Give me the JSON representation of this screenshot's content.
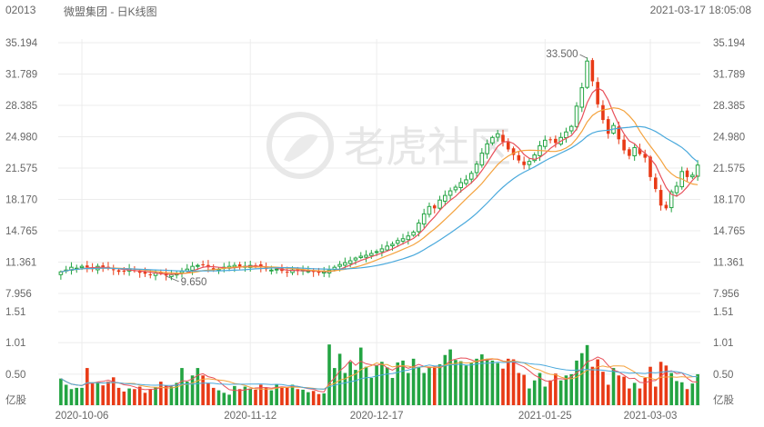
{
  "header": {
    "code": "02013",
    "name": "微盟集团 - 日K线图",
    "datetime": "2021-03-17 18:05:08"
  },
  "watermark": {
    "text": "老虎社区"
  },
  "colors": {
    "up": "#23a442",
    "down": "#e83a16",
    "ma5": "#e8505b",
    "ma10": "#f4a23d",
    "ma20": "#4aa9dc"
  },
  "chart_data": [
    {
      "type": "candlestick",
      "title": "微盟集团 - 日K线图",
      "y_ticks": [
        "35.194",
        "31.789",
        "28.385",
        "24.980",
        "21.575",
        "18.170",
        "14.765",
        "11.361",
        "7.956"
      ],
      "ylim": [
        7.956,
        35.194
      ],
      "x_tick_labels": [
        "2020-10-06",
        "2020-11-12",
        "2020-12-17",
        "2021-01-25",
        "2021-03-03"
      ],
      "annotations": [
        {
          "label": "33.500",
          "type": "high"
        },
        {
          "label": "9.650",
          "type": "low"
        }
      ],
      "series": [
        {
          "label": "MA5"
        },
        {
          "label": "MA10"
        },
        {
          "label": "MA20"
        }
      ],
      "close": [
        10.3,
        10.5,
        10.8,
        10.7,
        10.9,
        10.8,
        10.6,
        10.9,
        10.8,
        10.7,
        10.5,
        10.3,
        10.4,
        10.6,
        10.4,
        10.2,
        10.1,
        10.0,
        10.2,
        10.1,
        9.9,
        10.0,
        10.1,
        10.4,
        10.6,
        10.9,
        11.0,
        11.1,
        10.8,
        10.5,
        10.6,
        10.8,
        10.9,
        11.0,
        10.8,
        10.9,
        11.0,
        11.0,
        10.8,
        10.6,
        10.5,
        10.6,
        10.4,
        10.3,
        10.5,
        10.4,
        10.5,
        10.4,
        10.3,
        10.2,
        10.3,
        10.5,
        10.8,
        11.1,
        11.3,
        11.5,
        11.8,
        12.0,
        12.1,
        12.3,
        12.5,
        12.8,
        13.1,
        13.3,
        13.7,
        13.9,
        14.2,
        14.6,
        15.6,
        16.6,
        17.4,
        17.2,
        18.1,
        18.6,
        19.1,
        19.5,
        20.0,
        20.3,
        21.0,
        22.0,
        23.2,
        24.2,
        24.9,
        25.3,
        24.4,
        23.6,
        23.0,
        22.4,
        21.9,
        22.3,
        23.0,
        24.0,
        24.6,
        24.7,
        24.3,
        24.9,
        25.5,
        26.1,
        28.3,
        30.3,
        33.2,
        31.0,
        28.5,
        26.8,
        25.3,
        26.2,
        24.7,
        23.5,
        22.9,
        23.8,
        23.1,
        22.7,
        20.6,
        19.3,
        17.5,
        17.2,
        19.0,
        19.6,
        21.2,
        20.6,
        20.8,
        21.9
      ],
      "volume": [
        0.43,
        0.33,
        0.26,
        0.28,
        0.28,
        0.6,
        0.35,
        0.37,
        0.32,
        0.38,
        0.45,
        0.28,
        0.22,
        0.27,
        0.26,
        0.3,
        0.2,
        0.25,
        0.29,
        0.38,
        0.32,
        0.3,
        0.36,
        0.6,
        0.38,
        0.48,
        0.6,
        0.48,
        0.36,
        0.28,
        0.24,
        0.2,
        0.17,
        0.31,
        0.26,
        0.3,
        0.27,
        0.25,
        0.33,
        0.28,
        0.24,
        0.34,
        0.3,
        0.29,
        0.33,
        0.26,
        0.25,
        0.21,
        0.23,
        0.18,
        0.19,
        0.98,
        0.6,
        0.83,
        0.52,
        0.7,
        0.57,
        0.93,
        0.62,
        0.44,
        0.64,
        0.7,
        0.61,
        0.44,
        0.69,
        0.72,
        0.52,
        0.75,
        0.62,
        0.52,
        0.6,
        0.62,
        0.66,
        0.81,
        0.9,
        0.73,
        0.71,
        0.64,
        0.68,
        0.75,
        0.82,
        0.75,
        0.72,
        0.68,
        0.59,
        0.75,
        0.74,
        0.52,
        0.49,
        0.27,
        0.4,
        0.52,
        0.3,
        0.4,
        0.51,
        0.4,
        0.48,
        0.5,
        0.72,
        0.84,
        0.97,
        0.62,
        0.74,
        0.54,
        0.33,
        0.6,
        0.48,
        0.46,
        0.27,
        0.36,
        0.27,
        0.44,
        0.62,
        0.3,
        0.7,
        0.64,
        0.52,
        0.39,
        0.37,
        0.26,
        0.35,
        0.5
      ],
      "volume_ticks": [
        "1.51",
        "1.01",
        "0.50"
      ],
      "volume_unit": "亿股"
    }
  ]
}
